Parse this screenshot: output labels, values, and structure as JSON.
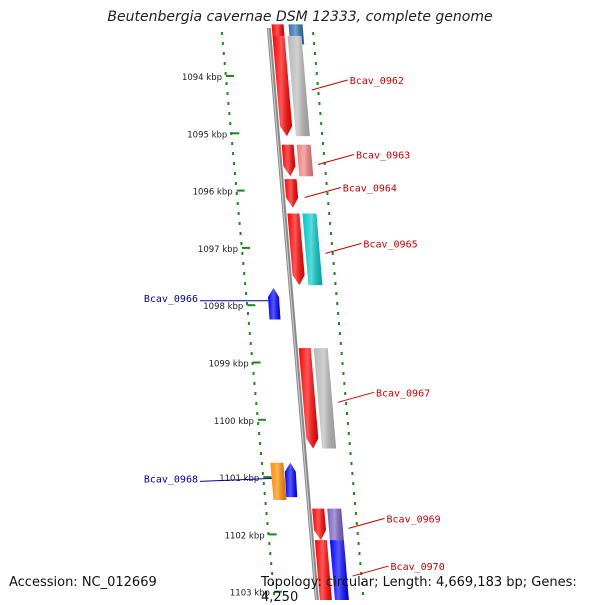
{
  "title": "Beutenbergia cavernae DSM 12333, complete genome",
  "footer": {
    "accession": "Accession: NC_012669",
    "summary": "Topology: circular; Length: 4,669,183 bp; Genes: 4,250"
  },
  "colors": {
    "ruler": "#1a8a1a",
    "backbone": "#8a8a8a",
    "cds": "#ff0000",
    "minus_strand": "#0000ff",
    "other": "#ff8c00",
    "label_plus": "#cc0000",
    "label_minus": "#000099"
  },
  "ruler": {
    "unit": "kbp",
    "ticks": [
      {
        "kbp": 1094,
        "label": "1094 kbp"
      },
      {
        "kbp": 1095,
        "label": "1095 kbp"
      },
      {
        "kbp": 1096,
        "label": "1096 kbp"
      },
      {
        "kbp": 1097,
        "label": "1097 kbp"
      },
      {
        "kbp": 1098,
        "label": "1098 kbp"
      },
      {
        "kbp": 1099,
        "label": "1099 kbp"
      },
      {
        "kbp": 1100,
        "label": "1100 kbp"
      },
      {
        "kbp": 1101,
        "label": "1101 kbp"
      },
      {
        "kbp": 1102,
        "label": "1102 kbp"
      },
      {
        "kbp": 1103,
        "label": "1103 kbp"
      }
    ]
  },
  "genes": [
    {
      "name": "",
      "start_kbp": 1093.1,
      "end_kbp": 1093.45,
      "strand": "+",
      "color": "#2f6fb0"
    },
    {
      "name": "Bcav_0962",
      "start_kbp": 1093.3,
      "end_kbp": 1095.05,
      "strand": "+",
      "color": "#b8b8b8"
    },
    {
      "name": "Bcav_0963",
      "start_kbp": 1095.2,
      "end_kbp": 1095.75,
      "strand": "+",
      "color": "#f08080"
    },
    {
      "name": "Bcav_0964",
      "start_kbp": 1095.8,
      "end_kbp": 1096.3,
      "strand": "+",
      "color": null
    },
    {
      "name": "Bcav_0965",
      "start_kbp": 1096.4,
      "end_kbp": 1097.65,
      "strand": "+",
      "color": "#00c8c8"
    },
    {
      "name": "Bcav_0966",
      "start_kbp": 1097.7,
      "end_kbp": 1098.25,
      "strand": "-",
      "color": "#0000ff"
    },
    {
      "name": "Bcav_0967",
      "start_kbp": 1098.75,
      "end_kbp": 1100.5,
      "strand": "+",
      "color": "#b8b8b8"
    },
    {
      "name": "Bcav_0968",
      "start_kbp": 1100.75,
      "end_kbp": 1101.4,
      "strand": "-",
      "color": "#ff8c00"
    },
    {
      "name": "",
      "start_kbp": 1100.75,
      "end_kbp": 1101.35,
      "strand": "-",
      "color": "#0000ff"
    },
    {
      "name": "Bcav_0969",
      "start_kbp": 1101.55,
      "end_kbp": 1102.1,
      "strand": "+",
      "color": "#7b5fc0"
    },
    {
      "name": "Bcav_0970",
      "start_kbp": 1102.1,
      "end_kbp": 1103.3,
      "strand": "+",
      "color": "#0000ff"
    }
  ]
}
